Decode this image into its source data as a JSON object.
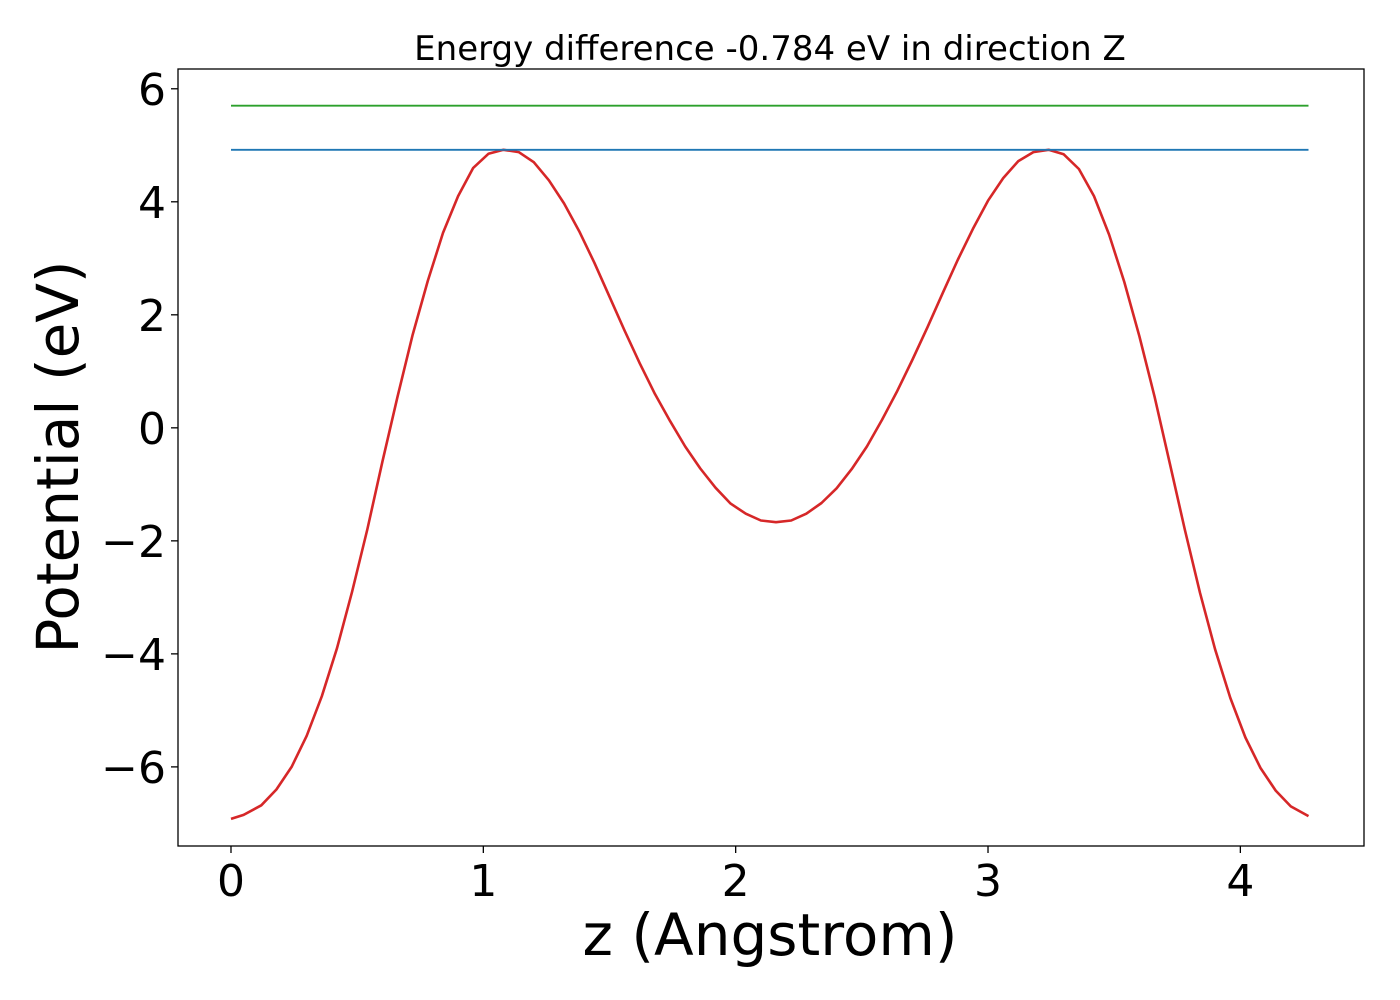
{
  "chart_data": {
    "type": "line",
    "title": "Energy difference -0.784 eV in direction Z",
    "xlabel": "z (Angstrom)",
    "ylabel": "Potential (eV)",
    "xlim": [
      -0.21,
      4.49
    ],
    "ylim": [
      -7.4,
      6.35
    ],
    "xticks": [
      0,
      1,
      2,
      3,
      4
    ],
    "xtick_labels": [
      "0",
      "1",
      "2",
      "3",
      "4"
    ],
    "yticks": [
      -6,
      -4,
      -2,
      0,
      2,
      4,
      6
    ],
    "ytick_labels": [
      "−6",
      "−4",
      "−2",
      "0",
      "2",
      "4",
      "6"
    ],
    "grid": false,
    "legend": "none",
    "series": [
      {
        "color": "#d62728",
        "x": [
          0.0,
          0.05,
          0.12,
          0.18,
          0.24,
          0.3,
          0.36,
          0.42,
          0.48,
          0.54,
          0.6,
          0.66,
          0.72,
          0.78,
          0.84,
          0.9,
          0.96,
          1.02,
          1.08,
          1.14,
          1.2,
          1.26,
          1.32,
          1.38,
          1.44,
          1.5,
          1.56,
          1.62,
          1.68,
          1.74,
          1.8,
          1.86,
          1.92,
          1.98,
          2.04,
          2.1,
          2.16,
          2.22,
          2.28,
          2.34,
          2.4,
          2.46,
          2.52,
          2.58,
          2.64,
          2.7,
          2.76,
          2.82,
          2.88,
          2.94,
          3.0,
          3.06,
          3.12,
          3.18,
          3.24,
          3.3,
          3.36,
          3.42,
          3.48,
          3.54,
          3.6,
          3.66,
          3.72,
          3.78,
          3.84,
          3.9,
          3.96,
          4.02,
          4.08,
          4.14,
          4.2,
          4.27
        ],
        "y": [
          -6.92,
          -6.85,
          -6.68,
          -6.4,
          -6.0,
          -5.45,
          -4.75,
          -3.9,
          -2.9,
          -1.8,
          -0.6,
          0.55,
          1.65,
          2.6,
          3.45,
          4.1,
          4.6,
          4.85,
          4.92,
          4.88,
          4.7,
          4.38,
          3.97,
          3.48,
          2.92,
          2.32,
          1.72,
          1.14,
          0.6,
          0.12,
          -0.33,
          -0.72,
          -1.06,
          -1.34,
          -1.52,
          -1.64,
          -1.67,
          -1.64,
          -1.52,
          -1.33,
          -1.07,
          -0.73,
          -0.33,
          0.14,
          0.65,
          1.2,
          1.78,
          2.38,
          2.97,
          3.52,
          4.02,
          4.42,
          4.72,
          4.88,
          4.92,
          4.84,
          4.58,
          4.1,
          3.42,
          2.58,
          1.62,
          0.55,
          -0.62,
          -1.8,
          -2.92,
          -3.92,
          -4.78,
          -5.48,
          -6.02,
          -6.42,
          -6.7,
          -6.87
        ]
      },
      {
        "color": "#1f77b4",
        "x": [
          0.0,
          4.27
        ],
        "y": [
          4.92,
          4.92
        ]
      },
      {
        "color": "#2ca02c",
        "x": [
          0.0,
          4.27
        ],
        "y": [
          5.7,
          5.7
        ]
      }
    ]
  }
}
